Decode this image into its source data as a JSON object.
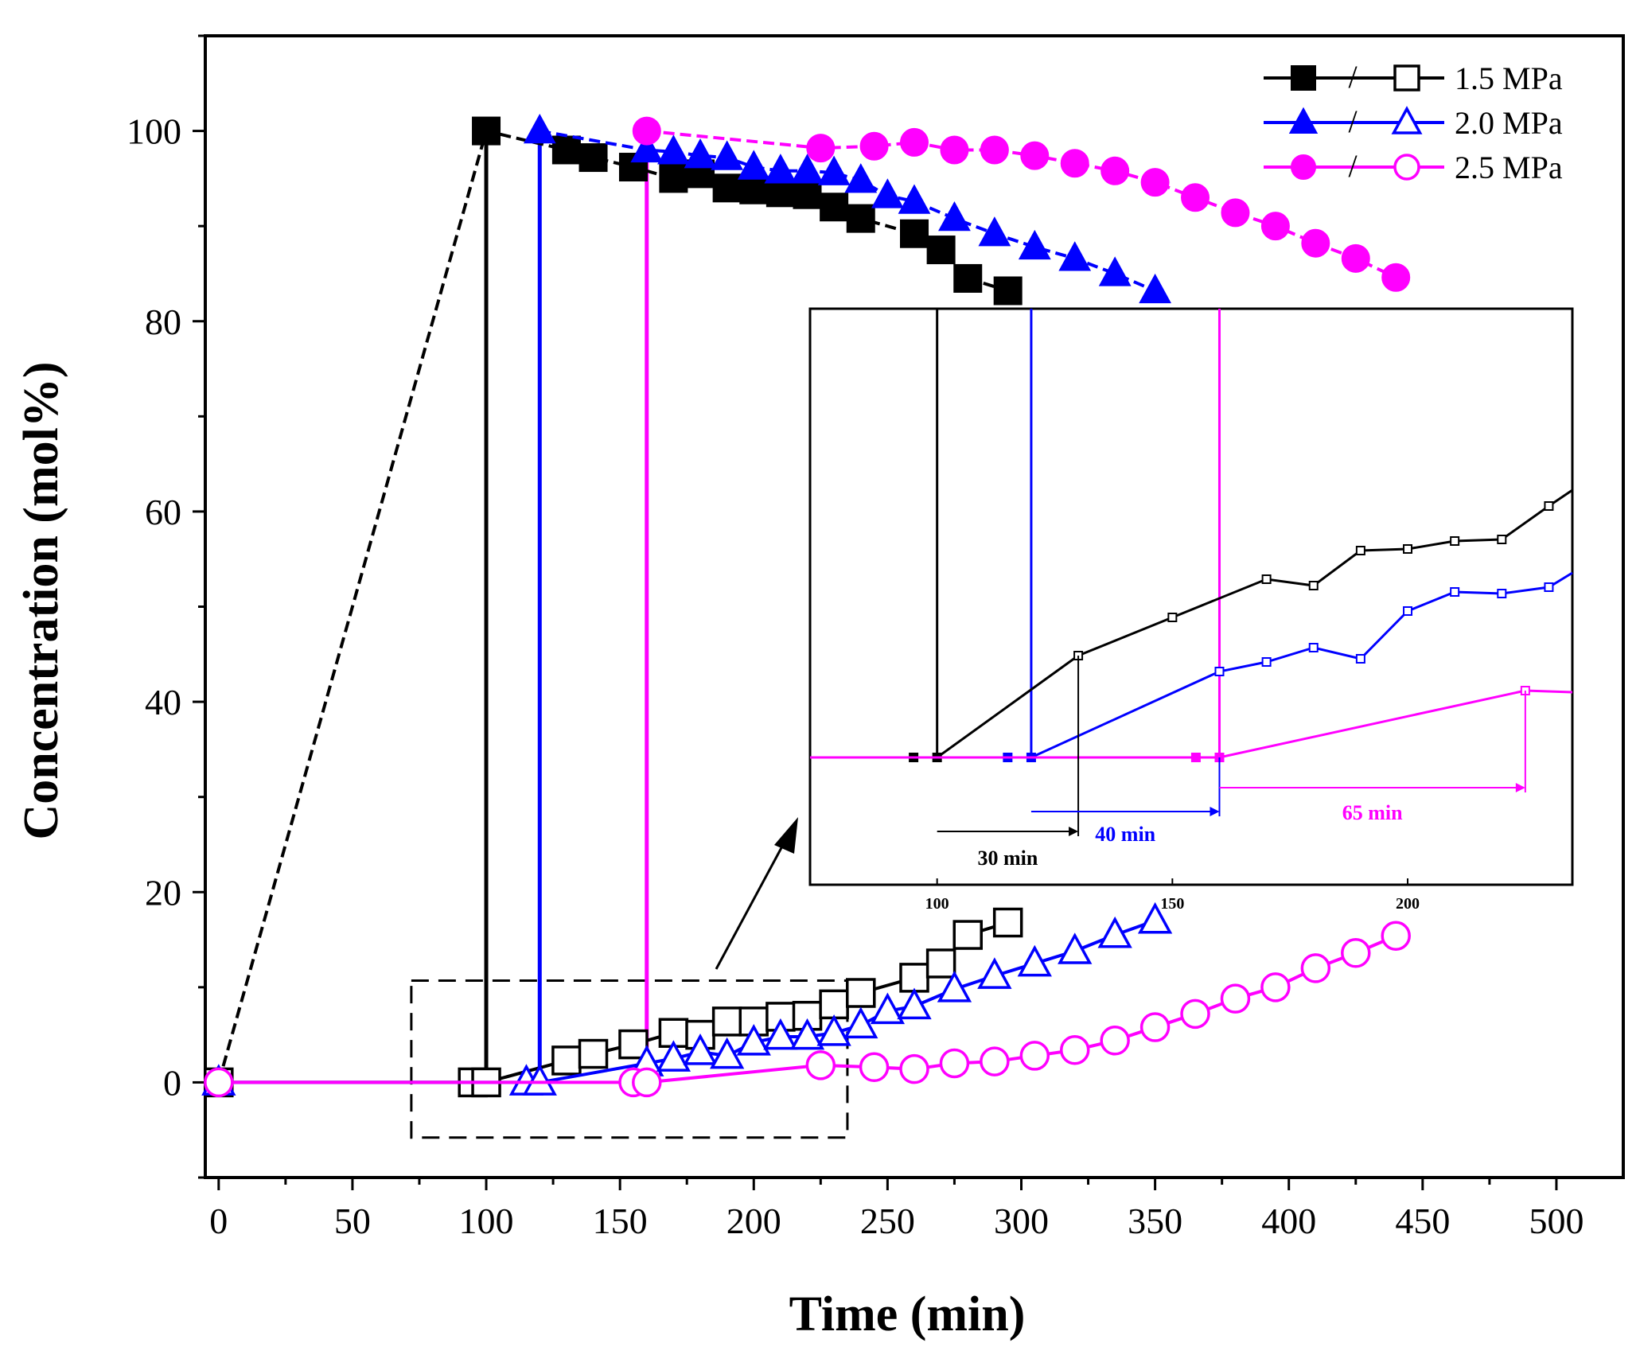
{
  "chart_data": [
    {
      "type": "line",
      "xlabel": "Time (min)",
      "ylabel": "Concentration (mol%)",
      "xlim": [
        -5,
        525
      ],
      "ylim": [
        -10,
        110
      ],
      "xticks": [
        0,
        50,
        100,
        150,
        200,
        250,
        300,
        350,
        400,
        450,
        500
      ],
      "yticks": [
        0,
        20,
        40,
        60,
        80,
        100
      ],
      "legend_position": "top-right",
      "legend": [
        {
          "label": "1.5 MPa",
          "color": "#000000",
          "marker": "square"
        },
        {
          "label": "2.0 MPa",
          "color": "#0000ff",
          "marker": "triangle"
        },
        {
          "label": "2.5 MPa",
          "color": "#ff00ff",
          "marker": "circle"
        }
      ],
      "series": [
        {
          "name": "1.5 MPa",
          "kind": "filled",
          "color": "#000000",
          "marker": "square",
          "x": [
            0,
            100,
            130,
            140,
            155,
            170,
            180,
            190,
            200,
            210,
            220,
            230,
            240,
            260,
            270,
            280,
            295
          ],
          "y": [
            0,
            100,
            98,
            97.2,
            96.2,
            95,
            95.5,
            94,
            93.8,
            93.5,
            93.3,
            92,
            90.8,
            89.2,
            87.5,
            84.5,
            83.2
          ]
        },
        {
          "name": "1.5 MPa",
          "kind": "open",
          "color": "#000000",
          "marker": "square",
          "x": [
            0,
            95,
            100,
            130,
            140,
            155,
            170,
            180,
            190,
            200,
            210,
            220,
            230,
            240,
            260,
            270,
            280,
            295
          ],
          "y": [
            0,
            0,
            0,
            2.3,
            3,
            4,
            5.2,
            5,
            6.4,
            6.4,
            6.9,
            7,
            8.2,
            9.4,
            11,
            12.5,
            15.5,
            16.8
          ]
        },
        {
          "name": "2.0 MPa",
          "kind": "filled",
          "color": "#0000ff",
          "marker": "triangle",
          "x": [
            120,
            160,
            170,
            180,
            190,
            200,
            210,
            220,
            230,
            240,
            250,
            260,
            275,
            290,
            305,
            320,
            335,
            350
          ],
          "y": [
            100,
            98,
            97.8,
            97.4,
            97.2,
            96.2,
            95.8,
            95.8,
            95.6,
            94.8,
            93.2,
            92.6,
            90.8,
            89.2,
            87.8,
            86.6,
            85,
            83.2
          ]
        },
        {
          "name": "2.0 MPa",
          "kind": "open",
          "color": "#0000ff",
          "marker": "triangle",
          "x": [
            0,
            115,
            120,
            160,
            170,
            180,
            190,
            200,
            210,
            220,
            230,
            240,
            250,
            260,
            275,
            290,
            305,
            320,
            335,
            350
          ],
          "y": [
            0,
            0,
            0,
            2,
            2.5,
            3.2,
            2.8,
            4.2,
            4.8,
            4.8,
            5.2,
            6,
            7.5,
            8,
            9.8,
            11.2,
            12.5,
            13.8,
            15.5,
            17
          ]
        },
        {
          "name": "2.5 MPa",
          "kind": "filled",
          "color": "#ff00ff",
          "marker": "circle",
          "x": [
            160,
            225,
            245,
            260,
            275,
            290,
            305,
            320,
            335,
            350,
            365,
            380,
            395,
            410,
            425,
            440
          ],
          "y": [
            100,
            98.2,
            98.4,
            98.8,
            98,
            98,
            97.4,
            96.6,
            95.8,
            94.6,
            93,
            91.4,
            90,
            88.2,
            86.6,
            84.6
          ]
        },
        {
          "name": "2.5 MPa",
          "kind": "open",
          "color": "#ff00ff",
          "marker": "circle",
          "x": [
            0,
            155,
            160,
            225,
            245,
            260,
            275,
            290,
            305,
            320,
            335,
            350,
            365,
            380,
            395,
            410,
            425,
            440
          ],
          "y": [
            0,
            0,
            0,
            1.8,
            1.6,
            1.4,
            2,
            2.2,
            2.8,
            3.4,
            4.4,
            5.8,
            7.2,
            8.8,
            10,
            12,
            13.6,
            15.4
          ]
        }
      ],
      "verticals": [
        {
          "x": 100,
          "color": "#000000"
        },
        {
          "x": 120,
          "color": "#0000ff"
        },
        {
          "x": 160,
          "color": "#ff00ff"
        }
      ],
      "zoom_box": {
        "x": [
          72,
          235
        ],
        "y": [
          -5.8,
          10.7
        ]
      }
    },
    {
      "type": "line",
      "xlim": [
        73,
        235
      ],
      "xticks": [
        100,
        150,
        200
      ],
      "series": [
        {
          "color": "#000000",
          "x": [
            95,
            100,
            130,
            150,
            170,
            180,
            190,
            200,
            210,
            220,
            230,
            235
          ],
          "y": [
            0,
            0,
            3.2,
            4.4,
            5.6,
            5.4,
            6.5,
            6.55,
            6.8,
            6.85,
            7.9,
            8.4
          ]
        },
        {
          "color": "#0000ff",
          "x": [
            115,
            120,
            160,
            170,
            180,
            190,
            200,
            210,
            220,
            230,
            235
          ],
          "y": [
            0,
            0,
            2.7,
            3,
            3.45,
            3.1,
            4.6,
            5.2,
            5.15,
            5.35,
            5.8
          ]
        },
        {
          "color": "#ff00ff",
          "x": [
            73,
            155,
            160,
            225,
            235
          ],
          "y": [
            0,
            0,
            0,
            2.1,
            2.05
          ]
        }
      ],
      "annotations": [
        {
          "label": "30 min",
          "from": 100,
          "to": 130,
          "color": "#000000"
        },
        {
          "label": "40 min",
          "from": 120,
          "to": 160,
          "color": "#0000ff"
        },
        {
          "label": "65 min",
          "from": 160,
          "to": 225,
          "color": "#ff00ff"
        }
      ]
    }
  ]
}
